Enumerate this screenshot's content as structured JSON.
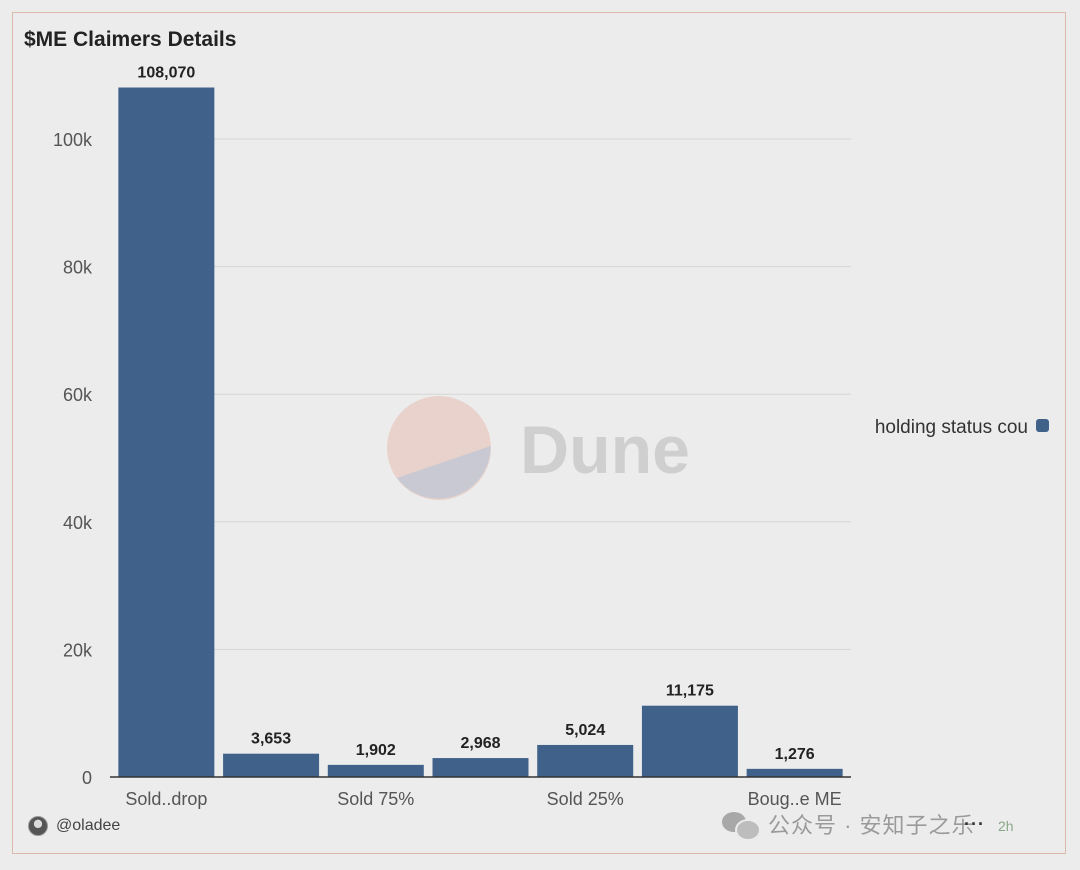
{
  "chart_data": {
    "type": "bar",
    "title": "$ME Claimers Details",
    "categories": [
      "Sold..drop",
      "",
      "Sold 75%",
      "",
      "Sold 25%",
      "",
      "Boug..e ME"
    ],
    "series": [
      {
        "name": "holding status cou",
        "values": [
          108070,
          3653,
          1902,
          2968,
          5024,
          11175,
          1276
        ]
      }
    ],
    "data_labels": [
      "108,070",
      "3,653",
      "1,902",
      "2,968",
      "5,024",
      "11,175",
      "1,276"
    ],
    "y_ticks": [
      "0",
      "20k",
      "40k",
      "60k",
      "80k",
      "100k"
    ],
    "y_tick_values": [
      0,
      20000,
      40000,
      60000,
      80000,
      100000
    ],
    "ylim": [
      0,
      115000
    ],
    "xlabel": "",
    "ylabel": "",
    "grid": true,
    "legend_position": "right",
    "bar_color": "#40628a"
  },
  "watermark": {
    "text": "Dune"
  },
  "footer": {
    "author": "@oladee",
    "wechat_source": "公众号 · 安知子之乐",
    "time": "2h",
    "more": "···"
  }
}
